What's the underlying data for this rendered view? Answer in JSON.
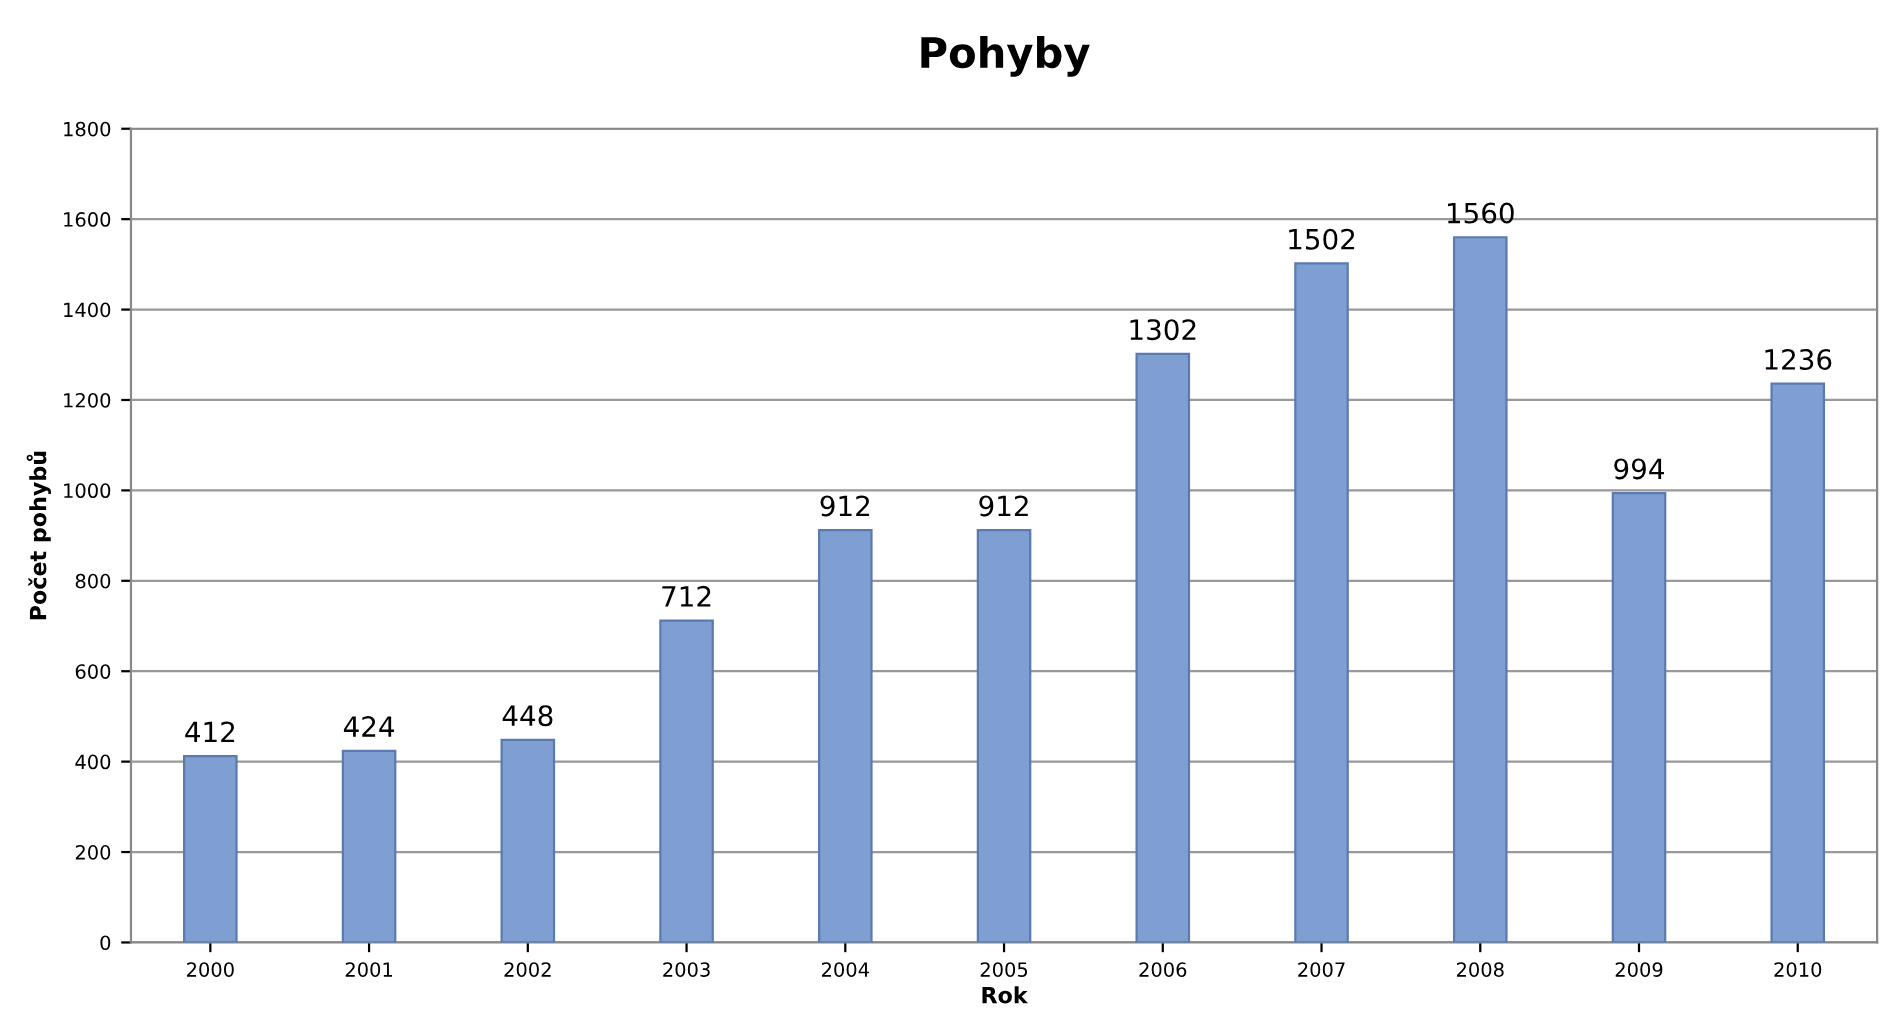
{
  "chart_data": {
    "type": "bar",
    "title": "Pohyby",
    "xlabel": "Rok",
    "ylabel": "Počet pohybů",
    "categories": [
      "2000",
      "2001",
      "2002",
      "2003",
      "2004",
      "2005",
      "2006",
      "2007",
      "2008",
      "2009",
      "2010"
    ],
    "values": [
      412,
      424,
      448,
      712,
      912,
      912,
      1302,
      1502,
      1560,
      994,
      1236
    ],
    "color": "#7f9fd2",
    "ylim": [
      0,
      1800
    ],
    "yticks": [
      0,
      200,
      400,
      600,
      800,
      1000,
      1200,
      1400,
      1600,
      1800
    ],
    "grid": "y",
    "data_labels": true
  }
}
